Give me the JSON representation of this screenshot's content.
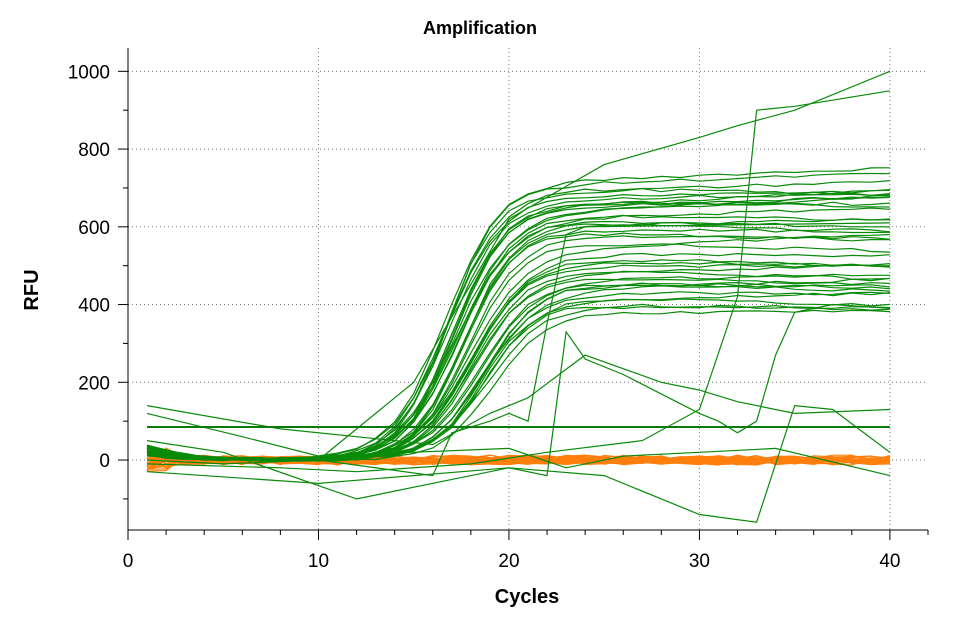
{
  "chart_data": {
    "type": "line",
    "title": "Amplification",
    "xlabel": "Cycles",
    "ylabel": "RFU",
    "xlim": [
      0,
      42
    ],
    "ylim": [
      -180,
      1060
    ],
    "x_ticks": [
      0,
      10,
      20,
      30,
      40
    ],
    "y_ticks": [
      0,
      200,
      400,
      600,
      800,
      1000
    ],
    "x_tick_labels": [
      "0",
      "10",
      "20",
      "30",
      "40"
    ],
    "y_tick_labels": [
      "0",
      "200",
      "400",
      "600",
      "800",
      "1000"
    ],
    "grid": true,
    "legend": "none",
    "threshold": 85,
    "colors": {
      "positive": "#0a8a0a",
      "negative": "#ff7f0e",
      "threshold": "#0a7a0a",
      "grid": "#7a7a7a",
      "axis": "#000000"
    },
    "cycles": [
      1,
      40
    ],
    "sigmoid_plateaus": [
      720,
      710,
      700,
      690,
      680,
      672,
      665,
      660,
      655,
      650,
      645,
      640,
      630,
      622,
      615,
      610,
      600,
      592,
      585,
      575,
      560,
      545,
      530,
      520,
      510,
      500,
      490,
      480,
      470,
      465,
      460,
      455,
      450,
      440,
      430,
      420,
      410,
      400,
      395,
      380
    ],
    "irregular_curves": [
      {
        "x": [
          1,
          5,
          10,
          15,
          20,
          25,
          30,
          32,
          35,
          40
        ],
        "y": [
          0,
          -10,
          0,
          200,
          620,
          760,
          830,
          860,
          900,
          1000
        ]
      },
      {
        "x": [
          1,
          8,
          12,
          18,
          22,
          27,
          30,
          32,
          33,
          35,
          40
        ],
        "y": [
          -10,
          -20,
          -30,
          -10,
          20,
          50,
          130,
          420,
          900,
          910,
          950
        ]
      },
      {
        "x": [
          1,
          10,
          16,
          17,
          19,
          20,
          21,
          22,
          23,
          24,
          40
        ],
        "y": [
          10,
          0,
          -40,
          70,
          100,
          120,
          100,
          350,
          580,
          600,
          610
        ]
      },
      {
        "x": [
          1,
          5,
          12,
          20,
          22,
          23,
          24,
          26,
          30,
          31,
          32,
          33,
          34,
          35,
          37,
          40
        ],
        "y": [
          50,
          20,
          -100,
          -20,
          -40,
          330,
          260,
          220,
          120,
          100,
          70,
          100,
          270,
          380,
          400,
          390
        ]
      },
      {
        "x": [
          1,
          8,
          16,
          19,
          21,
          24,
          28,
          30,
          32,
          35,
          40
        ],
        "y": [
          140,
          80,
          40,
          120,
          160,
          270,
          200,
          180,
          150,
          120,
          130
        ]
      },
      {
        "x": [
          1,
          10,
          20,
          25,
          30,
          33,
          35,
          37,
          40
        ],
        "y": [
          -30,
          -60,
          -20,
          -40,
          -140,
          -160,
          140,
          130,
          20
        ]
      },
      {
        "x": [
          1,
          6,
          10,
          20,
          23,
          26,
          30,
          34,
          40
        ],
        "y": [
          120,
          60,
          10,
          30,
          -20,
          10,
          20,
          30,
          -40
        ]
      }
    ],
    "negative_count": 34
  }
}
